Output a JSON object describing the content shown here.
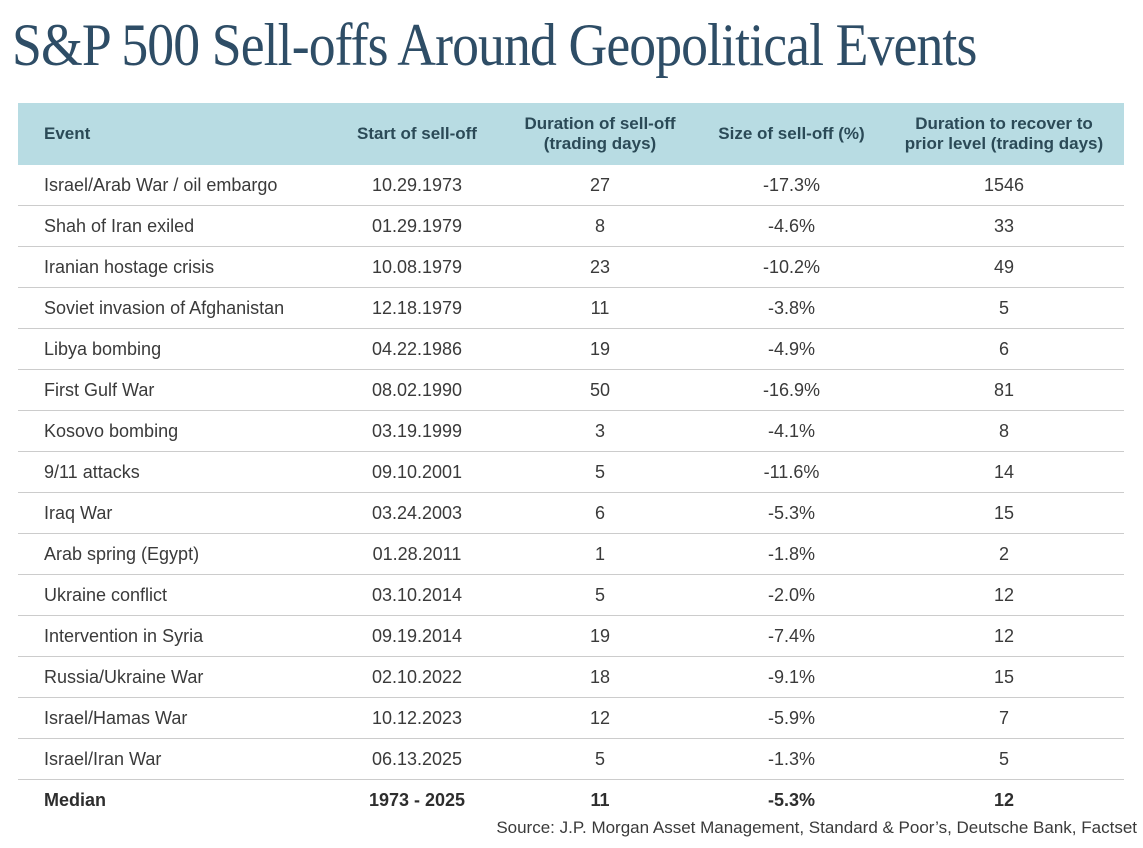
{
  "title": "S&P 500 Sell-offs Around Geopolitical Events",
  "table": {
    "headers": [
      {
        "line1": "Event",
        "line2": ""
      },
      {
        "line1": "Start of sell-off",
        "line2": ""
      },
      {
        "line1": "Duration of sell-off",
        "line2": "(trading days)"
      },
      {
        "line1": "Size of sell-off (%)",
        "line2": ""
      },
      {
        "line1": "Duration to recover to",
        "line2": "prior level (trading days)"
      }
    ]
  },
  "chart_data": {
    "type": "table",
    "title": "S&P 500 Sell-offs Around Geopolitical Events",
    "columns": [
      "Event",
      "Start of sell-off",
      "Duration of sell-off (trading days)",
      "Size of sell-off (%)",
      "Duration to recover to prior level (trading days)"
    ],
    "rows": [
      [
        "Israel/Arab War / oil embargo",
        "10.29.1973",
        "27",
        "-17.3%",
        "1546"
      ],
      [
        "Shah of Iran exiled",
        "01.29.1979",
        "8",
        "-4.6%",
        "33"
      ],
      [
        "Iranian hostage crisis",
        "10.08.1979",
        "23",
        "-10.2%",
        "49"
      ],
      [
        "Soviet invasion of Afghanistan",
        "12.18.1979",
        "11",
        "-3.8%",
        "5"
      ],
      [
        "Libya bombing",
        "04.22.1986",
        "19",
        "-4.9%",
        "6"
      ],
      [
        "First Gulf War",
        "08.02.1990",
        "50",
        "-16.9%",
        "81"
      ],
      [
        "Kosovo bombing",
        "03.19.1999",
        "3",
        "-4.1%",
        "8"
      ],
      [
        "9/11 attacks",
        "09.10.2001",
        "5",
        "-11.6%",
        "14"
      ],
      [
        "Iraq War",
        "03.24.2003",
        "6",
        "-5.3%",
        "15"
      ],
      [
        "Arab spring (Egypt)",
        "01.28.2011",
        "1",
        "-1.8%",
        "2"
      ],
      [
        "Ukraine conflict",
        "03.10.2014",
        "5",
        "-2.0%",
        "12"
      ],
      [
        "Intervention in Syria",
        "09.19.2014",
        "19",
        "-7.4%",
        "12"
      ],
      [
        "Russia/Ukraine War",
        "02.10.2022",
        "18",
        "-9.1%",
        "15"
      ],
      [
        "Israel/Hamas War",
        "10.12.2023",
        "12",
        "-5.9%",
        "7"
      ],
      [
        "Israel/Iran War",
        "06.13.2025",
        "5",
        "-1.3%",
        "5"
      ]
    ],
    "median_row": [
      "Median",
      "1973 - 2025",
      "11",
      "-5.3%",
      "12"
    ],
    "source": "Source: J.P. Morgan Asset Management, Standard & Poor’s, Deutsche Bank, Factset"
  },
  "colors": {
    "title_text": "#2e4d66",
    "header_bg": "#b8dce3",
    "header_text": "#2b4a57",
    "row_text": "#3a3a3a",
    "divider": "#cccccc",
    "background": "#ffffff"
  }
}
